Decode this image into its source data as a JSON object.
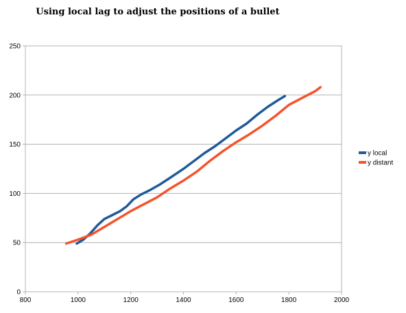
{
  "chart_data": {
    "type": "line",
    "title": "Using local lag to adjust the positions of a bullet",
    "xlim": [
      800,
      2000
    ],
    "ylim": [
      0,
      250
    ],
    "x_ticks": [
      800,
      1000,
      1200,
      1400,
      1600,
      1800,
      2000
    ],
    "y_ticks": [
      0,
      50,
      100,
      150,
      200,
      250
    ],
    "grid": "horizontal",
    "legend_position": "right",
    "series": [
      {
        "name": "y local",
        "color": "#1f5a9a",
        "points": [
          [
            995,
            49
          ],
          [
            1020,
            53
          ],
          [
            1045,
            59
          ],
          [
            1075,
            68
          ],
          [
            1100,
            74
          ],
          [
            1130,
            78
          ],
          [
            1160,
            82
          ],
          [
            1185,
            87
          ],
          [
            1210,
            94
          ],
          [
            1240,
            99
          ],
          [
            1270,
            103
          ],
          [
            1310,
            109
          ],
          [
            1350,
            116
          ],
          [
            1400,
            125
          ],
          [
            1440,
            133
          ],
          [
            1480,
            141
          ],
          [
            1520,
            148
          ],
          [
            1560,
            156
          ],
          [
            1600,
            164
          ],
          [
            1640,
            171
          ],
          [
            1680,
            180
          ],
          [
            1720,
            188
          ],
          [
            1760,
            195
          ],
          [
            1785,
            199
          ]
        ]
      },
      {
        "name": "y distant",
        "color": "#f5532a",
        "points": [
          [
            955,
            49
          ],
          [
            1000,
            53
          ],
          [
            1050,
            58
          ],
          [
            1100,
            66
          ],
          [
            1150,
            74
          ],
          [
            1200,
            82
          ],
          [
            1250,
            89
          ],
          [
            1300,
            96
          ],
          [
            1350,
            105
          ],
          [
            1400,
            113
          ],
          [
            1450,
            122
          ],
          [
            1500,
            133
          ],
          [
            1550,
            143
          ],
          [
            1600,
            152
          ],
          [
            1650,
            160
          ],
          [
            1700,
            169
          ],
          [
            1750,
            179
          ],
          [
            1800,
            190
          ],
          [
            1850,
            197
          ],
          [
            1900,
            204
          ],
          [
            1920,
            208
          ]
        ]
      }
    ]
  }
}
